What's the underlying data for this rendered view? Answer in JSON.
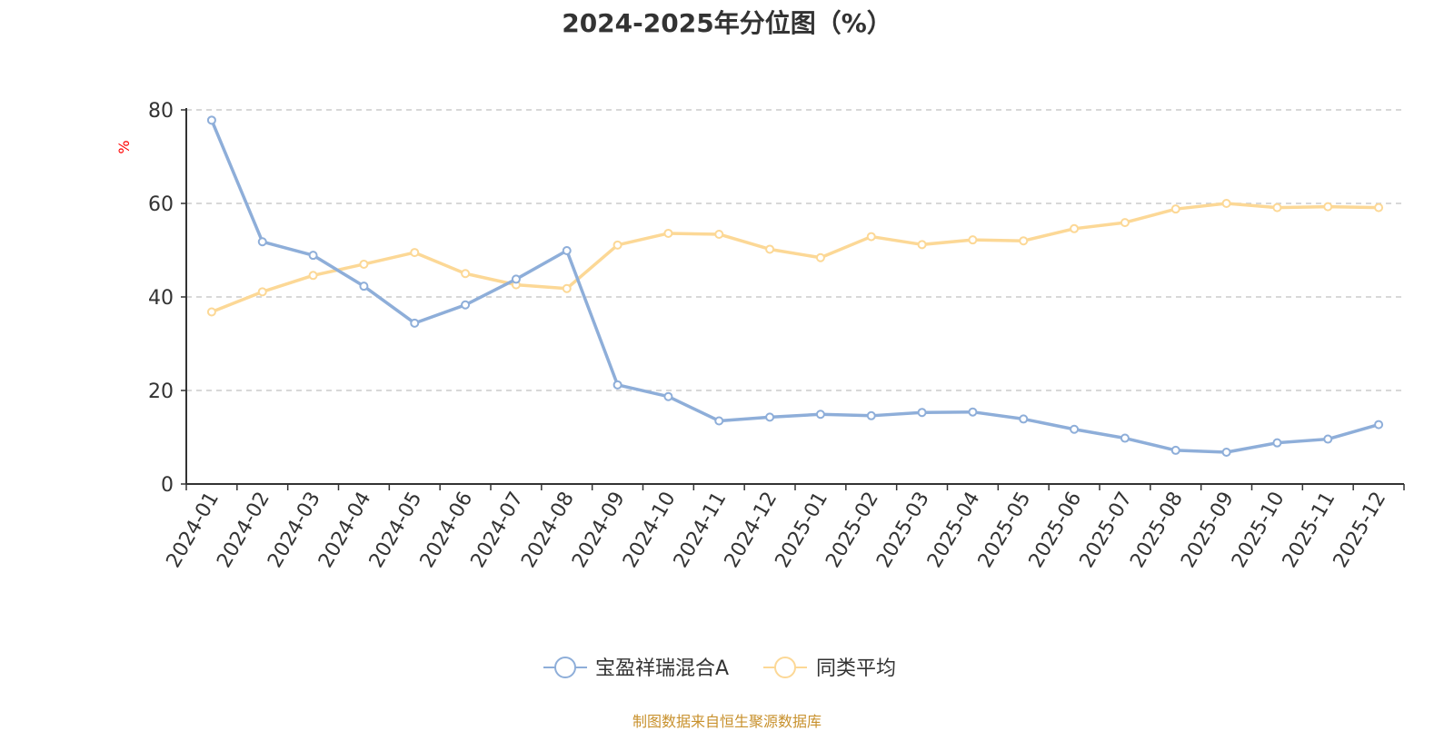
{
  "chart_data": {
    "type": "line",
    "title": "2024-2025年分位图（%）",
    "ylabel": "%",
    "xlabel": "",
    "ylim": [
      0,
      80
    ],
    "yticks": [
      0,
      20,
      40,
      60,
      80
    ],
    "grid": true,
    "legend_position": "bottom",
    "categories": [
      "2024-01",
      "2024-02",
      "2024-03",
      "2024-04",
      "2024-05",
      "2024-06",
      "2024-07",
      "2024-08",
      "2024-09",
      "2024-10",
      "2024-11",
      "2024-12",
      "2025-01",
      "2025-02",
      "2025-03",
      "2025-04",
      "2025-05",
      "2025-06",
      "2025-07",
      "2025-08",
      "2025-09",
      "2025-10",
      "2025-11",
      "2025-12"
    ],
    "series": [
      {
        "name": "宝盈祥瑞混合A",
        "color": "#8eaed9",
        "values": [
          77.8,
          51.8,
          48.9,
          42.3,
          34.4,
          38.3,
          43.8,
          49.9,
          21.2,
          18.7,
          13.5,
          14.3,
          14.9,
          14.6,
          15.3,
          15.4,
          13.9,
          11.7,
          9.8,
          7.2,
          6.8,
          8.8,
          9.6,
          12.7
        ]
      },
      {
        "name": "同类平均",
        "color": "#fcd896",
        "values": [
          36.8,
          41.1,
          44.6,
          47.0,
          49.5,
          45.0,
          42.6,
          41.8,
          51.1,
          53.6,
          53.4,
          50.2,
          48.4,
          52.9,
          51.2,
          52.2,
          52.0,
          54.6,
          55.9,
          58.8,
          60.0,
          59.1,
          59.3,
          59.1
        ]
      }
    ],
    "source": "制图数据来自恒生聚源数据库",
    "ylabel_color": "#ff0000",
    "source_color": "#c8912d",
    "grid_color": "#cccccc"
  }
}
